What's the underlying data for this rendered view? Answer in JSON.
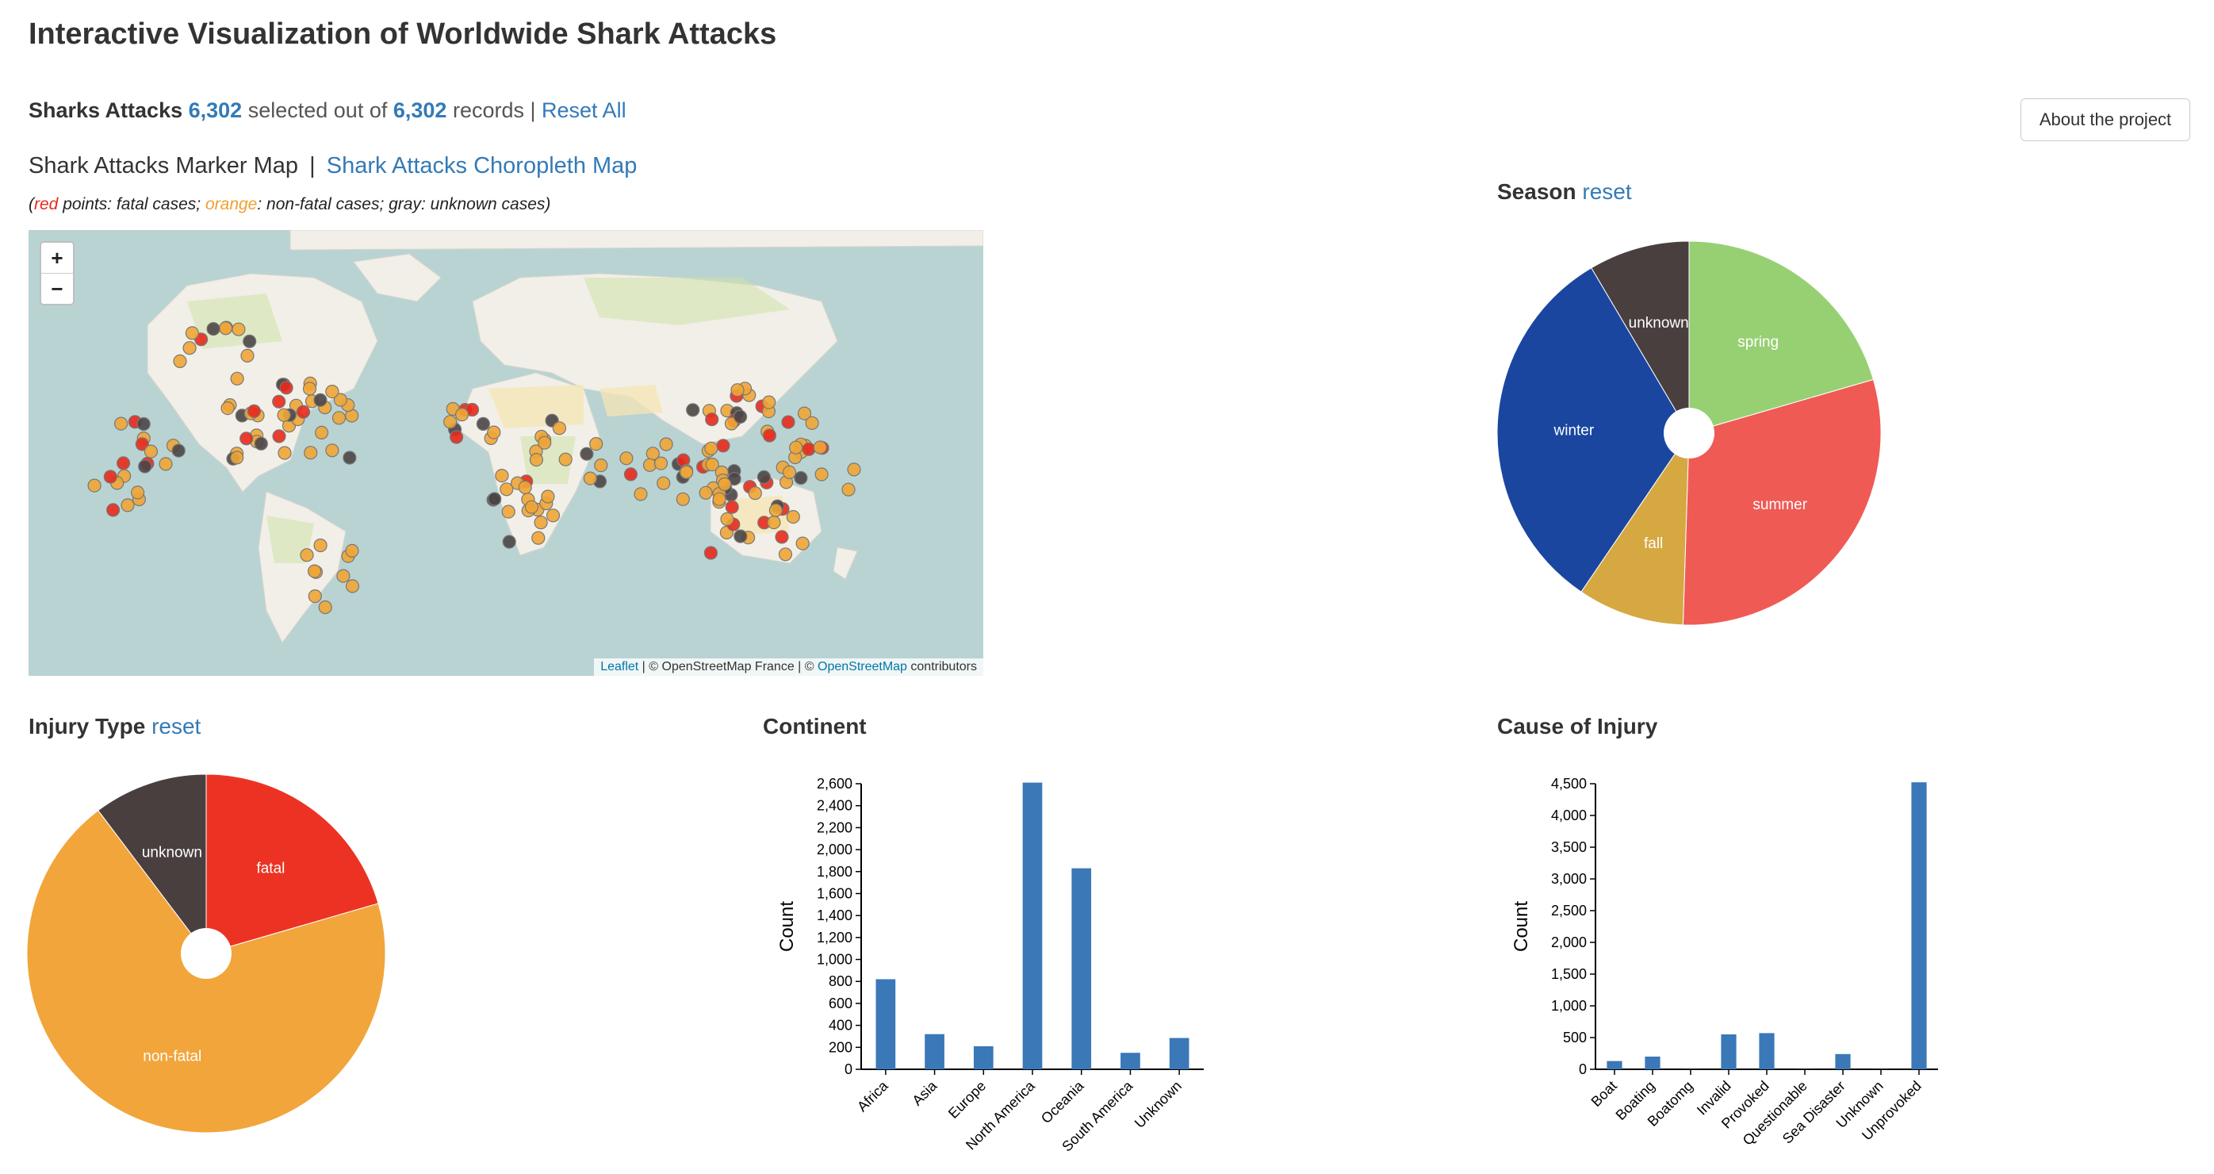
{
  "page": {
    "title": "Interactive Visualization of Worldwide Shark Attacks"
  },
  "summary": {
    "label": "Sharks Attacks",
    "selected": "6,302",
    "selected_text": "selected out of",
    "total": "6,302",
    "records_text": "records |",
    "reset_all": "Reset All"
  },
  "about_button": "About the project",
  "map_section": {
    "active_tab": "Shark Attacks Marker Map",
    "separator": "|",
    "other_tab": "Shark Attacks Choropleth Map",
    "note": {
      "red_word": "red",
      "after_red": " points: fatal cases; ",
      "orange_word": "orange",
      "after_orange": ": non-fatal cases; gray: unknown cases)",
      "open_paren": "("
    },
    "zoom_in": "+",
    "zoom_out": "−",
    "attribution": {
      "leaflet": "Leaflet",
      "middle": " | © OpenStreetMap France | © ",
      "osm": "OpenStreetMap",
      "end": " contributors"
    },
    "colors": {
      "fatal": "#e8291c",
      "nonfatal": "#f0a535",
      "unknown": "#4a4545"
    }
  },
  "season": {
    "title": "Season",
    "reset": "reset",
    "slices": [
      {
        "label": "spring",
        "value": 0.205,
        "color": "#97d073"
      },
      {
        "label": "summer",
        "value": 0.3,
        "color": "#ef5a55"
      },
      {
        "label": "fall",
        "value": 0.09,
        "color": "#d5a842"
      },
      {
        "label": "winter",
        "value": 0.32,
        "color": "#1a46a0"
      },
      {
        "label": "unknown",
        "value": 0.085,
        "color": "#4a3f3f"
      }
    ]
  },
  "injury": {
    "title": "Injury Type",
    "reset": "reset",
    "slices": [
      {
        "label": "fatal",
        "value": 0.205,
        "color": "#ec3323"
      },
      {
        "label": "non-fatal",
        "value": 0.692,
        "color": "#f2a53a"
      },
      {
        "label": "unknown",
        "value": 0.103,
        "color": "#4a3f3f"
      }
    ]
  },
  "continent": {
    "title": "Continent",
    "chart_data": {
      "type": "bar",
      "categories": [
        "Africa",
        "Asia",
        "Europe",
        "North America",
        "Oceania",
        "South America",
        "Unknown"
      ],
      "values": [
        820,
        320,
        210,
        2610,
        1830,
        150,
        285
      ],
      "ylabel": "Count",
      "ylim": [
        0,
        2600
      ],
      "yticks": [
        "0",
        "200",
        "400",
        "600",
        "800",
        "1,000",
        "1,200",
        "1,400",
        "1,600",
        "1,800",
        "2,000",
        "2,200",
        "2,400",
        "2,600"
      ],
      "color": "#3a78b8"
    }
  },
  "cause": {
    "title": "Cause of Injury",
    "chart_data": {
      "type": "bar",
      "categories": [
        "Boat",
        "Boating",
        "Boatomg",
        "Invalid",
        "Provoked",
        "Questionable",
        "Sea Disaster",
        "Unknown",
        "Unprovoked"
      ],
      "values": [
        130,
        200,
        2,
        550,
        570,
        2,
        240,
        2,
        4570
      ],
      "ylabel": "Count",
      "ylim": [
        0,
        4500
      ],
      "yticks": [
        "0",
        "500",
        "1,000",
        "1,500",
        "2,000",
        "2,500",
        "3,000",
        "3,500",
        "4,000",
        "4,500"
      ],
      "color": "#3a78b8"
    }
  }
}
